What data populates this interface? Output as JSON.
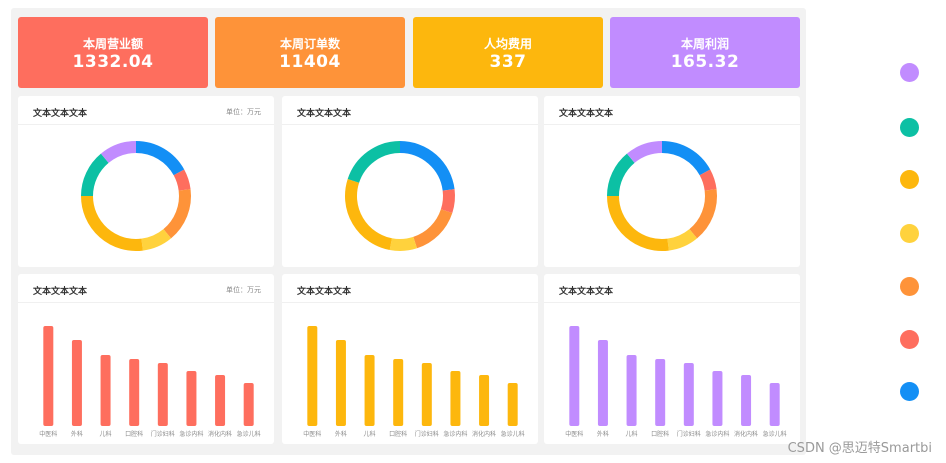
{
  "kpis": [
    {
      "label": "本周营业额",
      "value": "1332.04",
      "color": "#fe6e5e"
    },
    {
      "label": "本周订单数",
      "value": "11404",
      "color": "#fe9339"
    },
    {
      "label": "人均费用",
      "value": "337",
      "color": "#fdb70d"
    },
    {
      "label": "本周利润",
      "value": "165.32",
      "color": "#c18cff"
    }
  ],
  "cards": [
    {
      "title": "文本文本文本",
      "unit": "单位：万元"
    },
    {
      "title": "文本文本文本",
      "unit": ""
    },
    {
      "title": "文本文本文本",
      "unit": ""
    },
    {
      "title": "文本文本文本",
      "unit": "单位：万元"
    },
    {
      "title": "文本文本文本",
      "unit": ""
    },
    {
      "title": "文本文本文本",
      "unit": ""
    }
  ],
  "legend_colors": [
    "#c18cff",
    "#0cc0a4",
    "#fdb70d",
    "#ffd23d",
    "#fe9339",
    "#fe6e5e",
    "#138ff5"
  ],
  "watermark": "CSDN @思迈特Smartbi",
  "chart_data": [
    {
      "type": "pie",
      "donut": true,
      "slices": [
        {
          "value": 17,
          "color": "#138ff5"
        },
        {
          "value": 6,
          "color": "#fe6e5e"
        },
        {
          "value": 16,
          "color": "#fe9339"
        },
        {
          "value": 9,
          "color": "#ffd23d"
        },
        {
          "value": 27,
          "color": "#fdb70d"
        },
        {
          "value": 14,
          "color": "#0cc0a4"
        },
        {
          "value": 11,
          "color": "#c18cff"
        }
      ]
    },
    {
      "type": "pie",
      "donut": true,
      "slices": [
        {
          "value": 23,
          "color": "#138ff5"
        },
        {
          "value": 7,
          "color": "#fe6e5e"
        },
        {
          "value": 15,
          "color": "#fe9339"
        },
        {
          "value": 8,
          "color": "#ffd23d"
        },
        {
          "value": 27,
          "color": "#fdb70d"
        },
        {
          "value": 20,
          "color": "#0cc0a4"
        }
      ]
    },
    {
      "type": "pie",
      "donut": true,
      "slices": [
        {
          "value": 17,
          "color": "#138ff5"
        },
        {
          "value": 6,
          "color": "#fe6e5e"
        },
        {
          "value": 16,
          "color": "#fe9339"
        },
        {
          "value": 9,
          "color": "#ffd23d"
        },
        {
          "value": 27,
          "color": "#fdb70d"
        },
        {
          "value": 14,
          "color": "#0cc0a4"
        },
        {
          "value": 11,
          "color": "#c18cff"
        }
      ]
    },
    {
      "type": "bar",
      "color": "#fe6e5e",
      "categories": [
        "中医科",
        "外科",
        "儿科",
        "口腔科",
        "门诊妇科",
        "急诊内科",
        "消化内科",
        "急诊儿科"
      ],
      "values": [
        100,
        86,
        71,
        67,
        63,
        55,
        51,
        43
      ],
      "ylim": [
        0,
        100
      ]
    },
    {
      "type": "bar",
      "color": "#fdb70d",
      "categories": [
        "中医科",
        "外科",
        "儿科",
        "口腔科",
        "门诊妇科",
        "急诊内科",
        "消化内科",
        "急诊儿科"
      ],
      "values": [
        100,
        86,
        71,
        67,
        63,
        55,
        51,
        43
      ],
      "ylim": [
        0,
        100
      ]
    },
    {
      "type": "bar",
      "color": "#c18cff",
      "categories": [
        "中医科",
        "外科",
        "儿科",
        "口腔科",
        "门诊妇科",
        "急诊内科",
        "消化内科",
        "急诊儿科"
      ],
      "values": [
        100,
        86,
        71,
        67,
        63,
        55,
        51,
        43
      ],
      "ylim": [
        0,
        100
      ]
    }
  ]
}
